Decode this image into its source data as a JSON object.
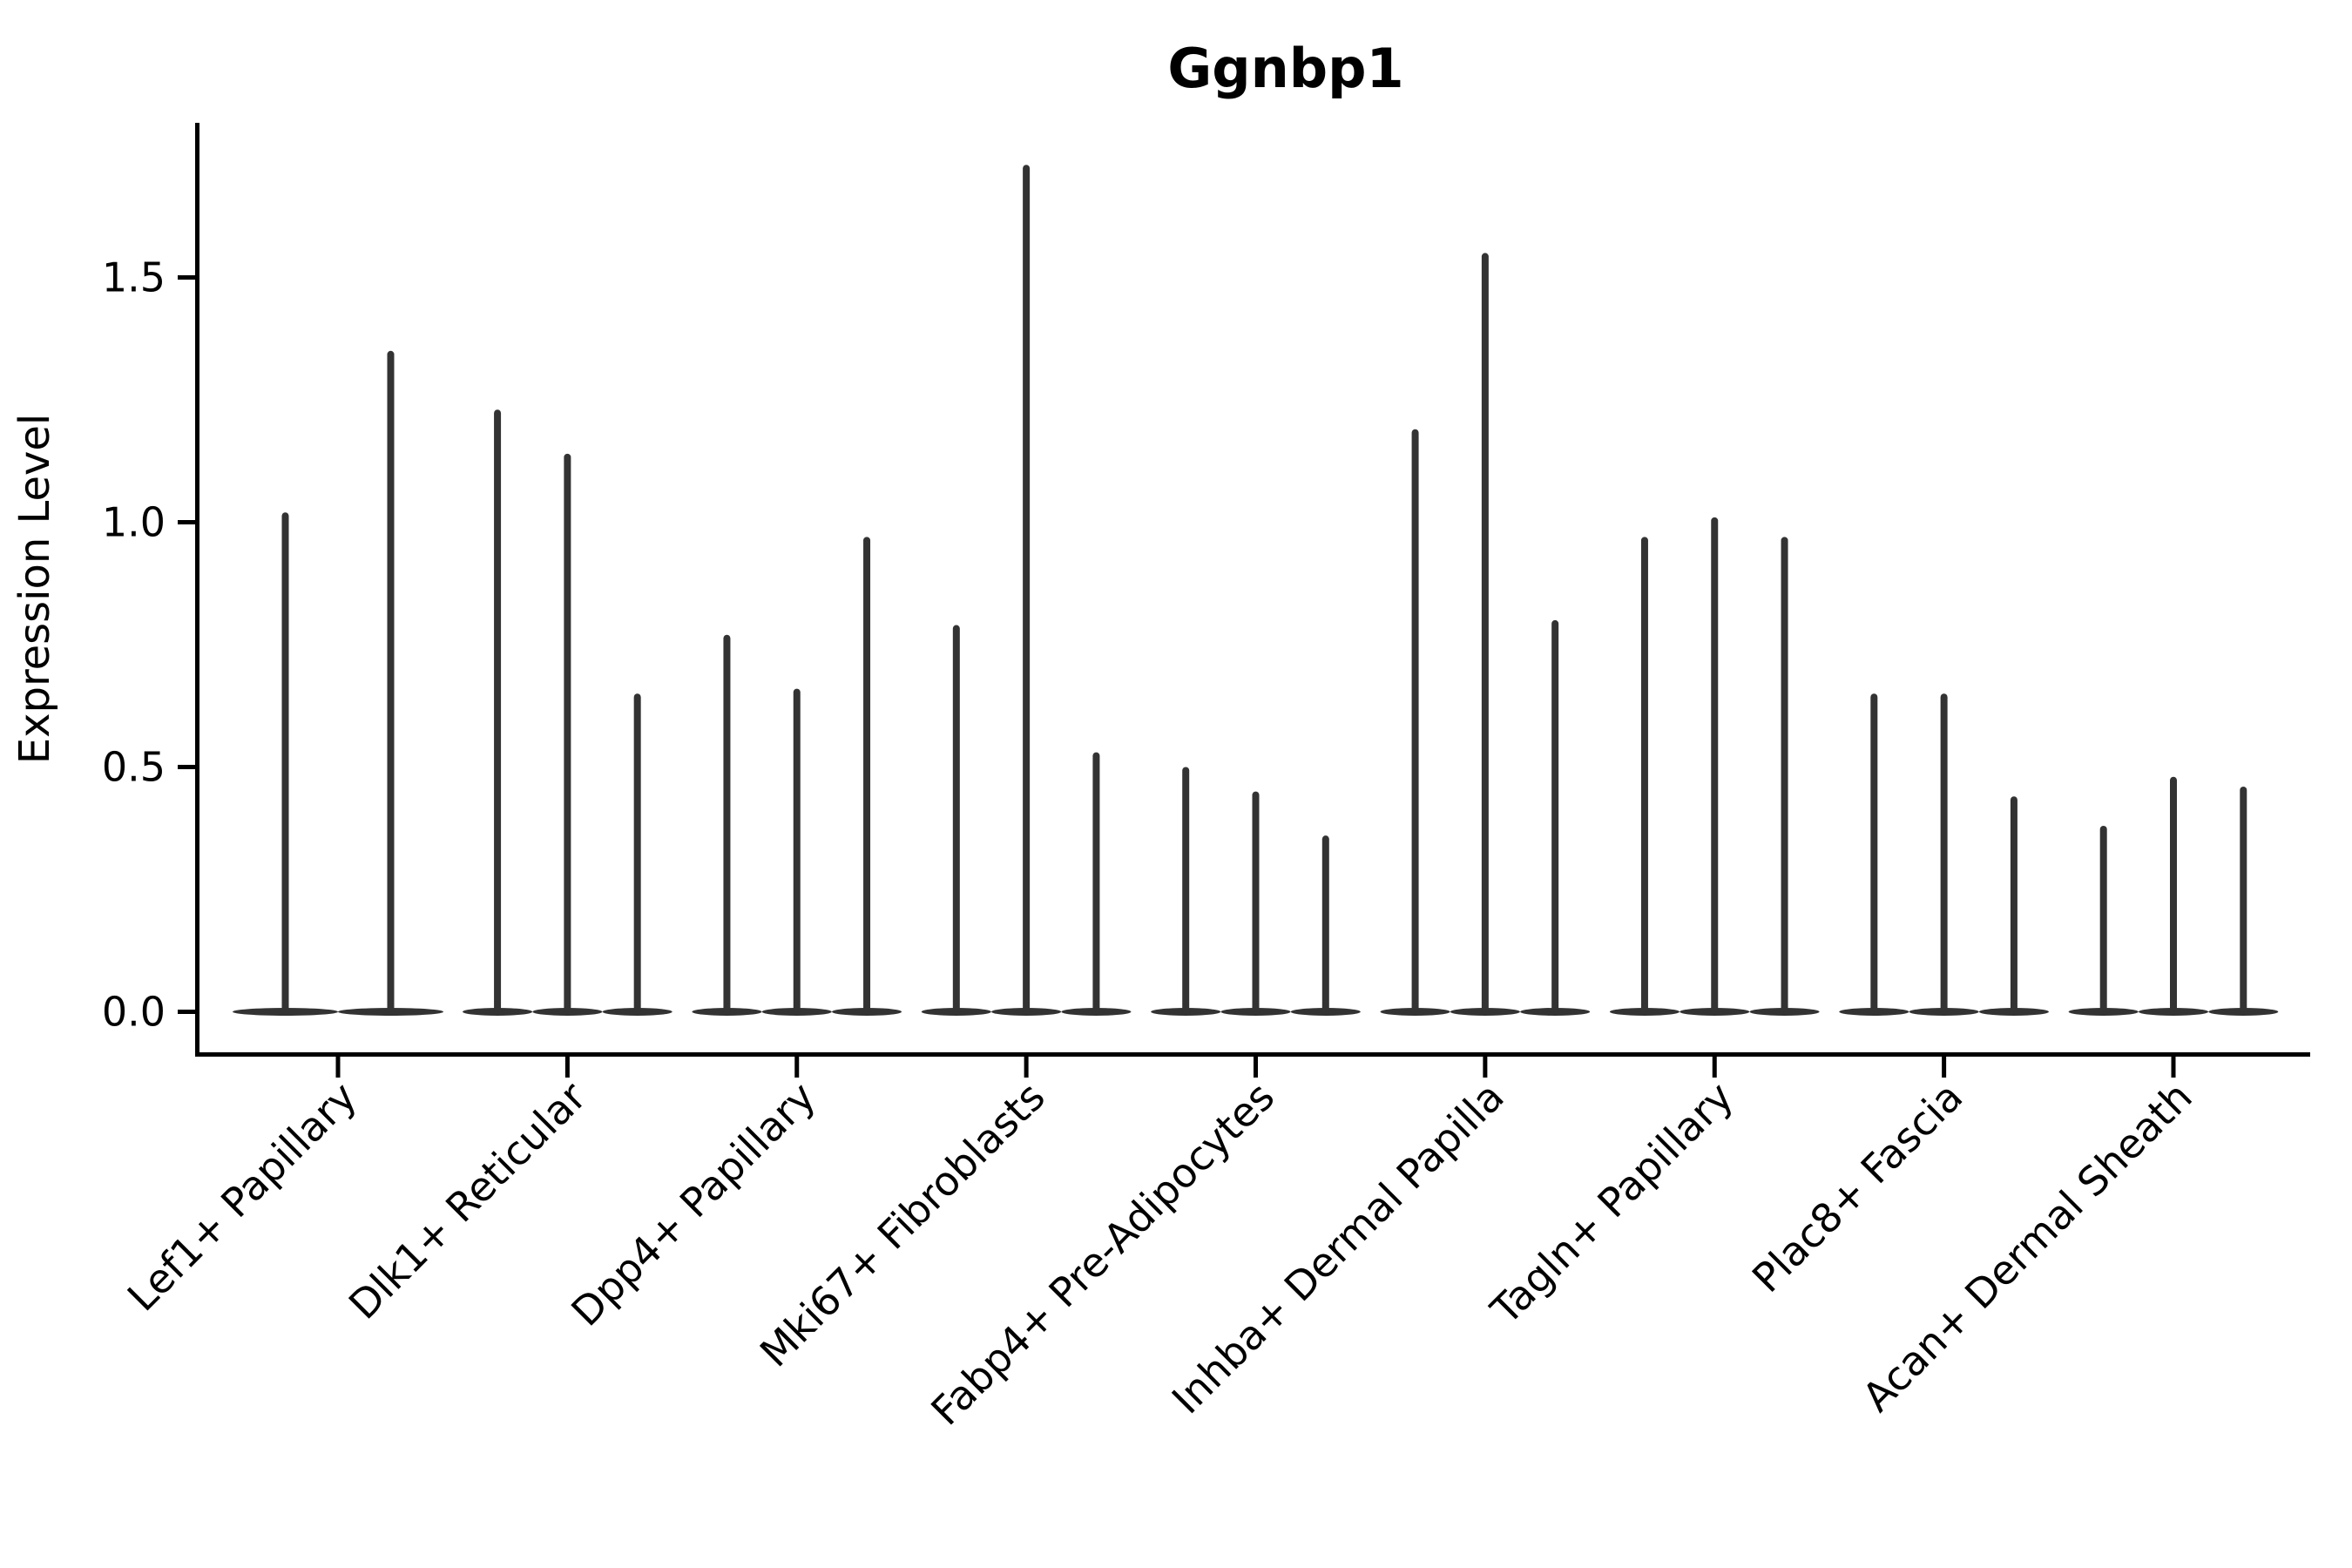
{
  "title": "Ggnbp1",
  "colors": {
    "violin_fill": "#333333",
    "axis": "#000000",
    "background": "#ffffff"
  },
  "chart_data": {
    "type": "violin",
    "title": "Ggnbp1",
    "xlabel": "",
    "ylabel": "Expression Level",
    "yticks": [
      "0.0",
      "0.5",
      "1.0",
      "1.5"
    ],
    "ytick_values": [
      0.0,
      0.5,
      1.0,
      1.5
    ],
    "ylim": [
      -0.09,
      1.81
    ],
    "grid": false,
    "legend": "none",
    "categories": [
      "Lef1+ Papillary",
      "Dlk1+ Reticular",
      "Dpp4+ Papillary",
      "Mki67+ Fibroblasts",
      "Fabp4+ Pre-Adipocytes",
      "Inhba+ Dermal Papilla",
      "Tagln+ Papillary",
      "Plac8+ Fascia",
      "Acan+ Dermal Sheath"
    ],
    "groups": [
      {
        "label": "Lef1+ Papillary",
        "violin_peaks": [
          1.02,
          1.35
        ]
      },
      {
        "label": "Dlk1+ Reticular",
        "violin_peaks": [
          1.23,
          1.14,
          0.65
        ]
      },
      {
        "label": "Dpp4+ Papillary",
        "violin_peaks": [
          0.77,
          0.66,
          0.97
        ]
      },
      {
        "label": "Mki67+ Fibroblasts",
        "violin_peaks": [
          0.79,
          1.73,
          0.53
        ]
      },
      {
        "label": "Fabp4+ Pre-Adipocytes",
        "violin_peaks": [
          0.5,
          0.45,
          0.36
        ]
      },
      {
        "label": "Inhba+ Dermal Papilla",
        "violin_peaks": [
          1.19,
          1.55,
          0.8
        ]
      },
      {
        "label": "Tagln+ Papillary",
        "violin_peaks": [
          0.97,
          1.01,
          0.97
        ]
      },
      {
        "label": "Plac8+ Fascia",
        "violin_peaks": [
          0.65,
          0.65,
          0.44
        ]
      },
      {
        "label": "Acan+ Dermal Sheath",
        "violin_peaks": [
          0.38,
          0.48,
          0.46
        ]
      }
    ],
    "description": "Violin plot of gene expression; each category shows narrow violins (mass at 0 with thin spikes up to the peak expression value)."
  }
}
